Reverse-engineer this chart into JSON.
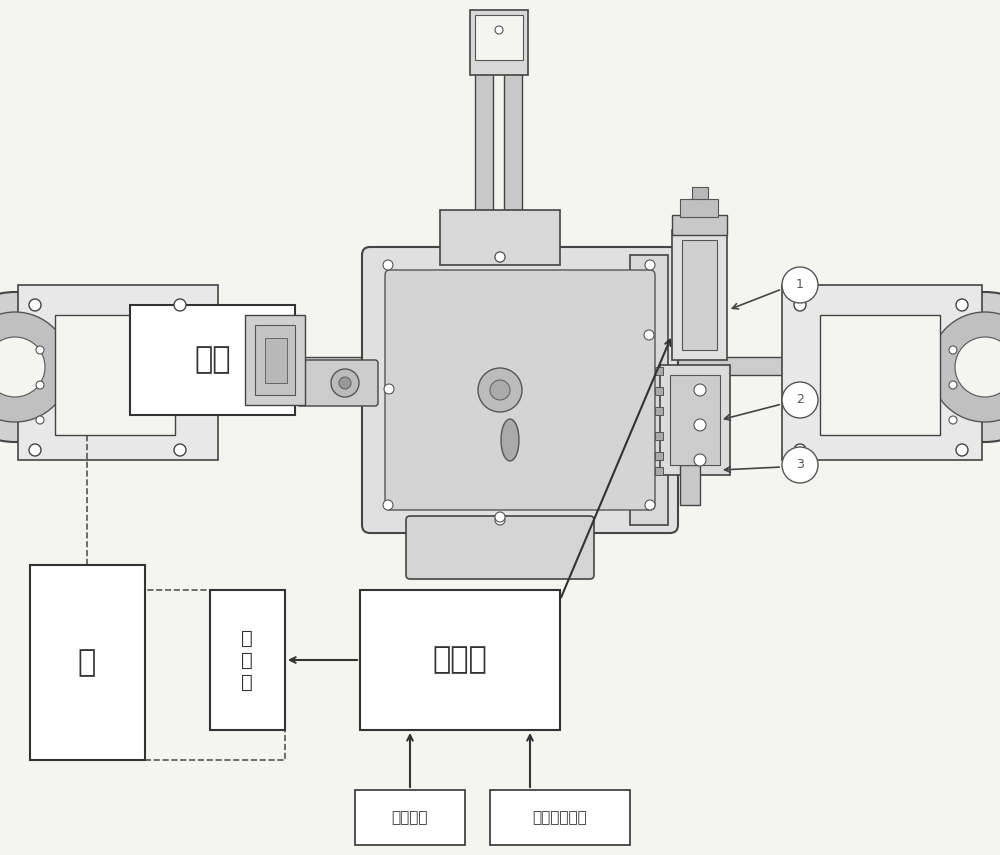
{
  "bg_color": "#f5f5f0",
  "line_color": "#555555",
  "box_fill": "#ffffff",
  "box_edge": "#333333",
  "dashed_color": "#555555",
  "text_color": "#333333",
  "label1": "1",
  "label2": "2",
  "label3": "3",
  "box_ma_text": "马达",
  "box_beng_text": "泵",
  "box_zhidongfa_text": "制\n动\n阀",
  "box_kongzhiqi_text": "控制器",
  "box_huandang_text": "换档信号",
  "box_xitong_text": "系统其它信息"
}
